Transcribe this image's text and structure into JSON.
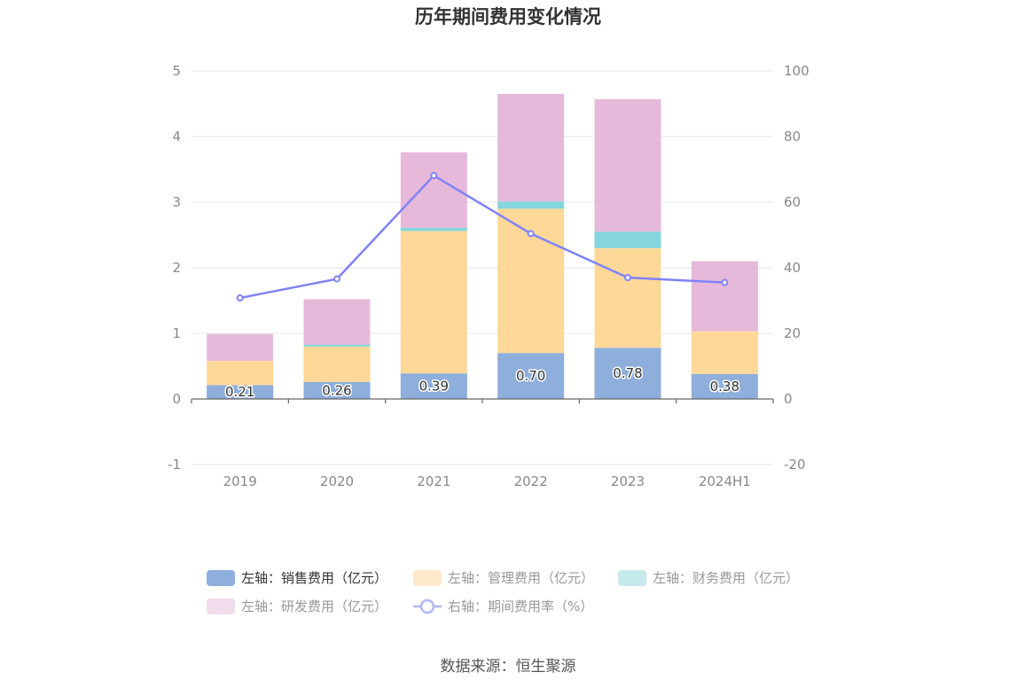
{
  "chart_data": {
    "type": "bar",
    "title": "历年期间费用变化情况",
    "categories": [
      "2019",
      "2020",
      "2021",
      "2022",
      "2023",
      "2024H1"
    ],
    "stacked": true,
    "y_left": {
      "min": -1,
      "max": 5,
      "ticks": [
        "-1",
        "0",
        "1",
        "2",
        "3",
        "4",
        "5"
      ]
    },
    "y_right": {
      "min": -20,
      "max": 100,
      "ticks": [
        "-20",
        "0",
        "20",
        "40",
        "60",
        "80",
        "100"
      ]
    },
    "series": [
      {
        "name": "左轴：销售费用（亿元）",
        "type": "bar",
        "axis": "left",
        "color": "#8eaedc",
        "values": [
          0.21,
          0.26,
          0.39,
          0.7,
          0.78,
          0.38
        ],
        "labels": [
          "0.21",
          "0.26",
          "0.39",
          "0.70",
          "0.78",
          "0.38"
        ]
      },
      {
        "name": "左轴：管理费用（亿元）",
        "type": "bar",
        "axis": "left",
        "color": "#fed898",
        "values": [
          0.37,
          0.54,
          2.17,
          2.2,
          1.52,
          0.65
        ]
      },
      {
        "name": "左轴：财务费用（亿元）",
        "type": "bar",
        "axis": "left",
        "color": "#85d5dc",
        "values": [
          0.0,
          0.03,
          0.05,
          0.11,
          0.25,
          0.0
        ]
      },
      {
        "name": "左轴：研发费用（亿元）",
        "type": "bar",
        "axis": "left",
        "color": "#e6b9da",
        "values": [
          0.41,
          0.69,
          1.15,
          1.64,
          2.02,
          1.07
        ]
      },
      {
        "name": "右轴：期间费用率（%）",
        "type": "line",
        "axis": "right",
        "color": "#7f83f7",
        "values": [
          30.8,
          36.6,
          68.1,
          50.4,
          37.0,
          35.5
        ]
      }
    ],
    "legend_position": "bottom",
    "grid": true
  },
  "legend": [
    {
      "label": "左轴：销售费用（亿元）",
      "color": "#8eaedc",
      "text_color": "#333333",
      "shape": "bar"
    },
    {
      "label": "左轴：管理费用（亿元）",
      "color": "#fde8c9",
      "text_color": "#999999",
      "shape": "bar"
    },
    {
      "label": "左轴：财务费用（亿元）",
      "color": "#c6e9ec",
      "text_color": "#999999",
      "shape": "bar"
    },
    {
      "label": "左轴：研发费用（亿元）",
      "color": "#f1dcec",
      "text_color": "#999999",
      "shape": "bar"
    },
    {
      "label": "右轴：期间费用率（%）",
      "color": "#b3b6fa",
      "text_color": "#999999",
      "shape": "line"
    }
  ],
  "source": "数据来源：恒生聚源"
}
